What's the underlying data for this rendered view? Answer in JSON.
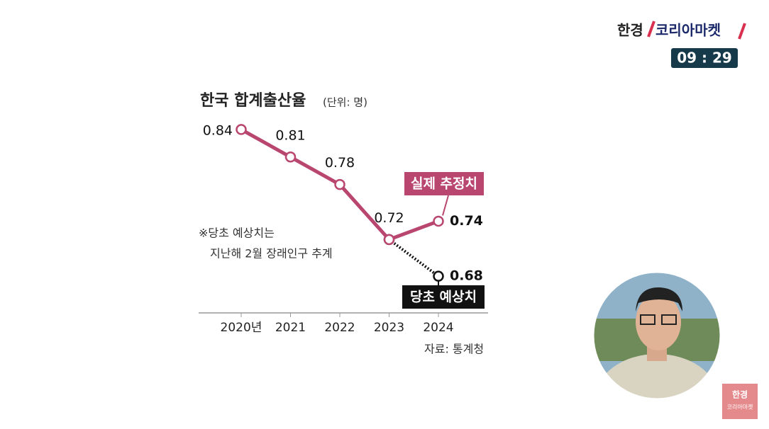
{
  "header": {
    "brand": "한경",
    "program": "코리아마켓",
    "clock": "09 : 29"
  },
  "corner_logo": {
    "brand": "한경",
    "program": "코리아마켓"
  },
  "chart_data": {
    "type": "line",
    "title": "한국 합계출산율",
    "subtitle": "(단위: 명)",
    "categories": [
      "2020년",
      "2021",
      "2022",
      "2023",
      "2024"
    ],
    "series": [
      {
        "name": "실제 추정치",
        "color": "#b9466f",
        "values": [
          0.84,
          0.81,
          0.78,
          0.72,
          0.74
        ]
      },
      {
        "name": "당초 예상치",
        "color": "#111111",
        "values": [
          null,
          null,
          null,
          0.72,
          0.68
        ]
      }
    ],
    "ylim": [
      0.64,
      0.86
    ],
    "annotation": [
      "※당초 예상치는",
      "지난해 2월 장래인구 추계"
    ],
    "source": "자료: 통계청"
  }
}
